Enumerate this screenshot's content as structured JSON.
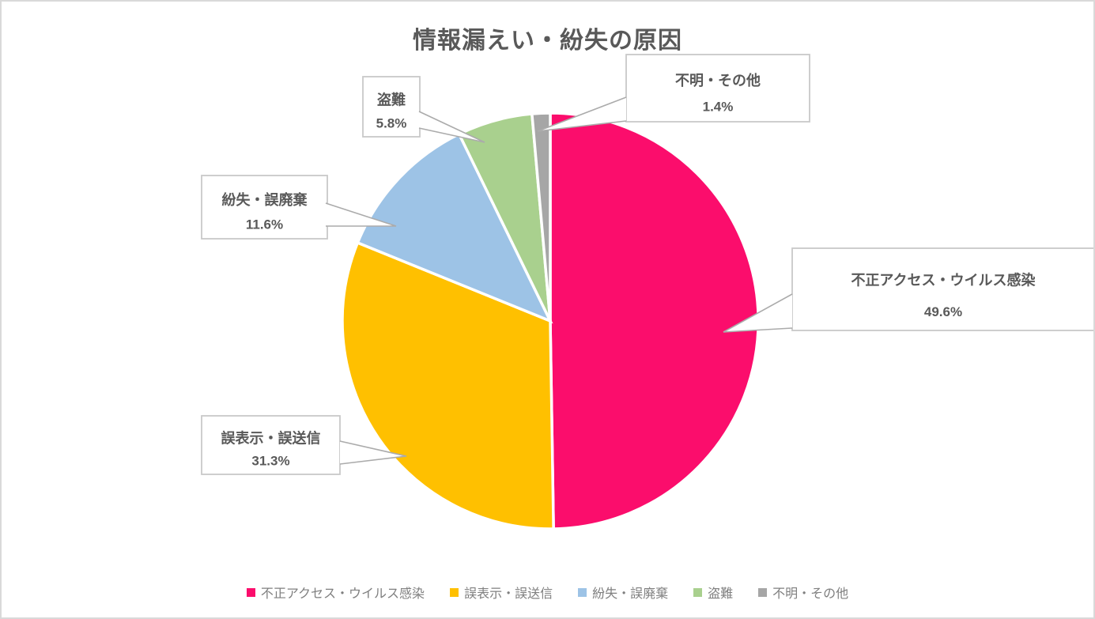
{
  "title": "情報漏えい・紛失の原因",
  "chart_data": {
    "type": "pie",
    "title": "情報漏えい・紛失の原因",
    "categories": [
      "不正アクセス・ウイルス感染",
      "誤表示・誤送信",
      "紛失・誤廃棄",
      "盗難",
      "不明・その他"
    ],
    "values": [
      49.6,
      31.3,
      11.6,
      5.8,
      1.4
    ],
    "unit": "%",
    "value_labels": [
      "49.6%",
      "31.3%",
      "11.6%",
      "5.8%",
      "1.4%"
    ],
    "colors": [
      "#FB0D6C",
      "#FFC000",
      "#9DC3E6",
      "#A9D08E",
      "#A6A6A6"
    ],
    "start_angle": "top",
    "direction": "clockwise",
    "legend_position": "bottom",
    "label_style": "callout boxes with category name and percent value"
  },
  "legend": {
    "items": [
      {
        "label": "不正アクセス・ウイルス感染",
        "color": "#FB0D6C"
      },
      {
        "label": "誤表示・誤送信",
        "color": "#FFC000"
      },
      {
        "label": "紛失・誤廃棄",
        "color": "#9DC3E6"
      },
      {
        "label": "盗難",
        "color": "#A9D08E"
      },
      {
        "label": "不明・その他",
        "color": "#A6A6A6"
      }
    ]
  },
  "styles": {
    "title_color": "#595959",
    "label_text_color": "#595959",
    "legend_text_color": "#7F7F7F",
    "callout_border_color": "#C9C9C9",
    "callout_fill_color": "#FFFFFF",
    "leader_line_color": "#ABABAB",
    "chart_frame_border_color": "#D9D9D9",
    "background_color": "#FFFFFF",
    "slice_gap_color": "#FFFFFF"
  }
}
